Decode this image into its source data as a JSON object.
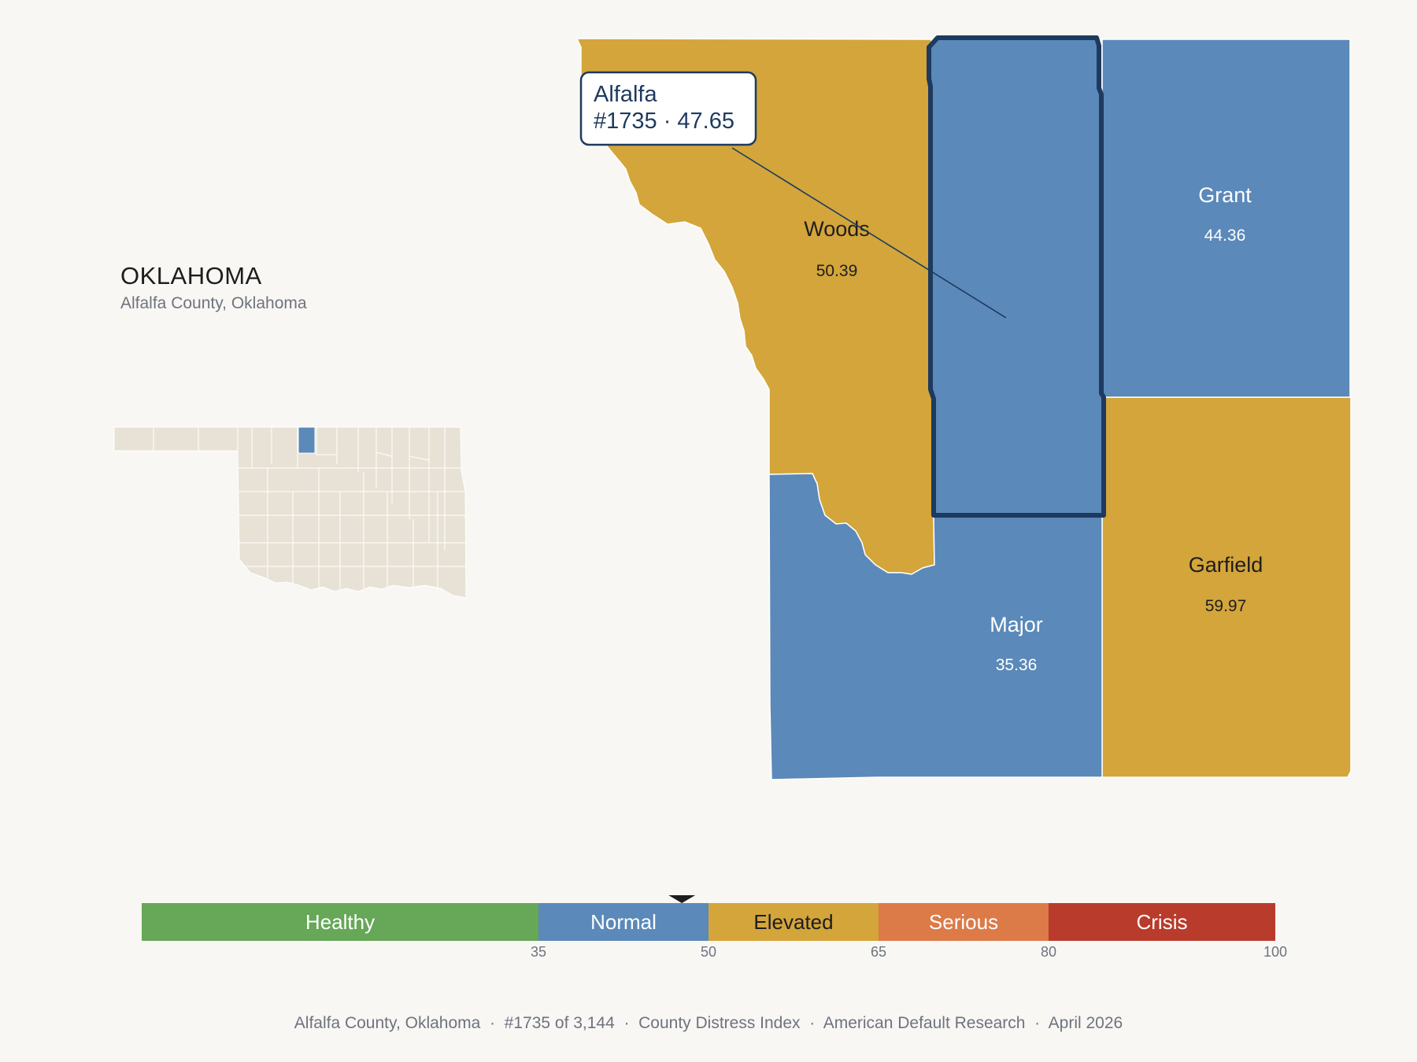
{
  "header": {
    "state": "OKLAHOMA",
    "subtitle": "Alfalfa County, Oklahoma"
  },
  "colors": {
    "healthy": "#66a758",
    "normal": "#5b89b9",
    "elevated": "#d3a53a",
    "serious": "#dc7a48",
    "crisis": "#b83b2c",
    "inset_fill": "#e8e2d6",
    "highlight_outline": "#1e3a5f"
  },
  "counties": [
    {
      "name": "Woods",
      "value": "50.39",
      "category": "elevated"
    },
    {
      "name": "Alfalfa",
      "value": "47.65",
      "category": "normal",
      "selected": true
    },
    {
      "name": "Grant",
      "value": "44.36",
      "category": "normal"
    },
    {
      "name": "Major",
      "value": "35.36",
      "category": "normal"
    },
    {
      "name": "Garfield",
      "value": "59.97",
      "category": "elevated"
    }
  ],
  "callout": {
    "line1": "Alfalfa",
    "line2": "#1735 · 47.65"
  },
  "legend": {
    "bands": [
      {
        "label": "Healthy",
        "from": 0,
        "to": 35,
        "color": "#66a758",
        "text_color": "#ffffff"
      },
      {
        "label": "Normal",
        "from": 35,
        "to": 50,
        "color": "#5b89b9",
        "text_color": "#ffffff"
      },
      {
        "label": "Elevated",
        "from": 50,
        "to": 65,
        "color": "#d3a53a",
        "text_color": "#1d1d1f"
      },
      {
        "label": "Serious",
        "from": 65,
        "to": 80,
        "color": "#dc7a48",
        "text_color": "#ffffff"
      },
      {
        "label": "Crisis",
        "from": 80,
        "to": 100,
        "color": "#b83b2c",
        "text_color": "#ffffff"
      }
    ],
    "ticks": [
      "35",
      "50",
      "65",
      "80",
      "100"
    ],
    "marker_value": 47.65
  },
  "footer": {
    "text": "Alfalfa County, Oklahoma  ·  #1735 of 3,144  ·  County Distress Index  ·  American Default Research  ·  April 2026"
  }
}
